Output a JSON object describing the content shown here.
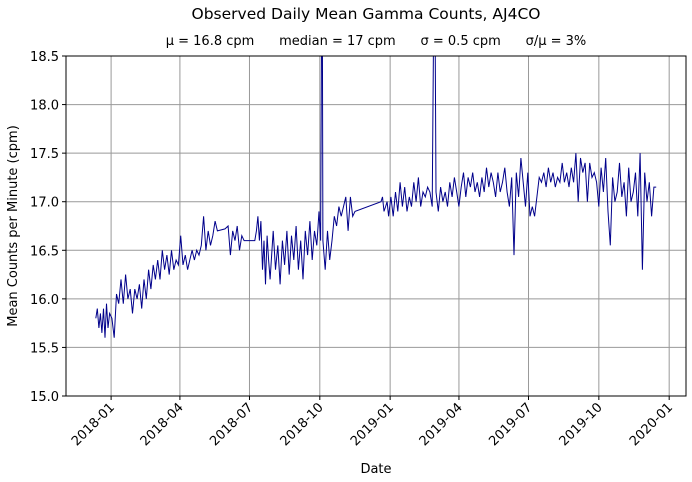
{
  "chart_data": {
    "type": "line",
    "title": "Observed Daily Mean Gamma Counts, AJ4CO",
    "subtitle": "μ = 16.8 cpm      median = 17 cpm      σ = 0.5 cpm      σ/μ = 3%",
    "xlabel": "Date",
    "ylabel": "Mean Counts per Minute (cpm)",
    "xlim": [
      "2017-11-03",
      "2020-01-23"
    ],
    "ylim": [
      15.0,
      18.5
    ],
    "grid": true,
    "line_color": "#00008b",
    "x_ticks": [
      "2018-01-01",
      "2018-04-01",
      "2018-07-01",
      "2018-10-01",
      "2019-01-01",
      "2019-04-01",
      "2019-07-01",
      "2019-10-01",
      "2020-01-01"
    ],
    "x_tick_labels": [
      "2018-01",
      "2018-04",
      "2018-07",
      "2018-10",
      "2019-01",
      "2019-04",
      "2019-07",
      "2019-10",
      "2020-01"
    ],
    "y_ticks": [
      15.0,
      15.5,
      16.0,
      16.5,
      17.0,
      17.5,
      18.0,
      18.5
    ],
    "y_tick_labels": [
      "15.0",
      "15.5",
      "16.0",
      "16.5",
      "17.0",
      "17.5",
      "18.0",
      "18.5"
    ],
    "points": [
      [
        "2017-12-12",
        15.8
      ],
      [
        "2017-12-14",
        15.9
      ],
      [
        "2017-12-16",
        15.7
      ],
      [
        "2017-12-18",
        15.85
      ],
      [
        "2017-12-20",
        15.65
      ],
      [
        "2017-12-22",
        15.9
      ],
      [
        "2017-12-24",
        15.6
      ],
      [
        "2017-12-26",
        15.95
      ],
      [
        "2017-12-28",
        15.7
      ],
      [
        "2017-12-30",
        15.85
      ],
      [
        "2018-01-02",
        15.8
      ],
      [
        "2018-01-05",
        15.6
      ],
      [
        "2018-01-08",
        16.05
      ],
      [
        "2018-01-11",
        15.95
      ],
      [
        "2018-01-14",
        16.2
      ],
      [
        "2018-01-17",
        15.95
      ],
      [
        "2018-01-20",
        16.25
      ],
      [
        "2018-01-23",
        16.0
      ],
      [
        "2018-01-26",
        16.1
      ],
      [
        "2018-01-29",
        15.85
      ],
      [
        "2018-02-01",
        16.1
      ],
      [
        "2018-02-04",
        16.0
      ],
      [
        "2018-02-07",
        16.15
      ],
      [
        "2018-02-10",
        15.9
      ],
      [
        "2018-02-13",
        16.2
      ],
      [
        "2018-02-16",
        16.0
      ],
      [
        "2018-02-19",
        16.3
      ],
      [
        "2018-02-22",
        16.1
      ],
      [
        "2018-02-25",
        16.35
      ],
      [
        "2018-02-28",
        16.2
      ],
      [
        "2018-03-03",
        16.4
      ],
      [
        "2018-03-06",
        16.2
      ],
      [
        "2018-03-09",
        16.5
      ],
      [
        "2018-03-12",
        16.3
      ],
      [
        "2018-03-15",
        16.45
      ],
      [
        "2018-03-18",
        16.25
      ],
      [
        "2018-03-21",
        16.5
      ],
      [
        "2018-03-24",
        16.3
      ],
      [
        "2018-03-27",
        16.4
      ],
      [
        "2018-03-30",
        16.35
      ],
      [
        "2018-04-02",
        16.65
      ],
      [
        "2018-04-05",
        16.35
      ],
      [
        "2018-04-08",
        16.45
      ],
      [
        "2018-04-11",
        16.3
      ],
      [
        "2018-04-14",
        16.4
      ],
      [
        "2018-04-17",
        16.5
      ],
      [
        "2018-04-20",
        16.4
      ],
      [
        "2018-04-23",
        16.5
      ],
      [
        "2018-04-26",
        16.45
      ],
      [
        "2018-04-29",
        16.55
      ],
      [
        "2018-05-02",
        16.85
      ],
      [
        "2018-05-05",
        16.5
      ],
      [
        "2018-05-08",
        16.7
      ],
      [
        "2018-05-11",
        16.55
      ],
      [
        "2018-05-14",
        16.65
      ],
      [
        "2018-05-17",
        16.8
      ],
      [
        "2018-05-20",
        16.7
      ],
      [
        "2018-05-30",
        16.72
      ],
      [
        "2018-06-03",
        16.75
      ],
      [
        "2018-06-06",
        16.45
      ],
      [
        "2018-06-09",
        16.7
      ],
      [
        "2018-06-12",
        16.6
      ],
      [
        "2018-06-15",
        16.75
      ],
      [
        "2018-06-18",
        16.5
      ],
      [
        "2018-06-21",
        16.65
      ],
      [
        "2018-06-24",
        16.6
      ],
      [
        "2018-07-08",
        16.6
      ],
      [
        "2018-07-10",
        16.7
      ],
      [
        "2018-07-12",
        16.85
      ],
      [
        "2018-07-14",
        16.6
      ],
      [
        "2018-07-16",
        16.8
      ],
      [
        "2018-07-18",
        16.3
      ],
      [
        "2018-07-20",
        16.6
      ],
      [
        "2018-07-22",
        16.15
      ],
      [
        "2018-07-24",
        16.65
      ],
      [
        "2018-07-26",
        16.4
      ],
      [
        "2018-07-28",
        16.2
      ],
      [
        "2018-08-01",
        16.7
      ],
      [
        "2018-08-04",
        16.3
      ],
      [
        "2018-08-07",
        16.55
      ],
      [
        "2018-08-10",
        16.15
      ],
      [
        "2018-08-13",
        16.6
      ],
      [
        "2018-08-16",
        16.35
      ],
      [
        "2018-08-19",
        16.7
      ],
      [
        "2018-08-22",
        16.25
      ],
      [
        "2018-08-25",
        16.65
      ],
      [
        "2018-08-28",
        16.4
      ],
      [
        "2018-08-31",
        16.75
      ],
      [
        "2018-09-03",
        16.3
      ],
      [
        "2018-09-06",
        16.6
      ],
      [
        "2018-09-09",
        16.2
      ],
      [
        "2018-09-12",
        16.7
      ],
      [
        "2018-09-15",
        16.45
      ],
      [
        "2018-09-18",
        16.8
      ],
      [
        "2018-09-21",
        16.4
      ],
      [
        "2018-09-24",
        16.7
      ],
      [
        "2018-09-27",
        16.55
      ],
      [
        "2018-09-30",
        16.9
      ],
      [
        "2018-10-02",
        16.6
      ],
      [
        "2018-10-04",
        20.0
      ],
      [
        "2018-10-05",
        16.6
      ],
      [
        "2018-10-08",
        16.3
      ],
      [
        "2018-10-11",
        16.7
      ],
      [
        "2018-10-14",
        16.4
      ],
      [
        "2018-10-17",
        16.6
      ],
      [
        "2018-10-20",
        16.85
      ],
      [
        "2018-10-23",
        16.75
      ],
      [
        "2018-10-26",
        16.95
      ],
      [
        "2018-10-29",
        16.85
      ],
      [
        "2018-11-01",
        16.95
      ],
      [
        "2018-11-04",
        17.05
      ],
      [
        "2018-11-07",
        16.7
      ],
      [
        "2018-11-10",
        17.05
      ],
      [
        "2018-11-13",
        16.85
      ],
      [
        "2018-11-16",
        16.9
      ],
      [
        "2018-12-20",
        17.0
      ],
      [
        "2018-12-22",
        17.05
      ],
      [
        "2018-12-24",
        16.9
      ],
      [
        "2018-12-26",
        16.95
      ],
      [
        "2018-12-28",
        17.0
      ],
      [
        "2018-12-30",
        16.85
      ],
      [
        "2019-01-02",
        17.05
      ],
      [
        "2019-01-05",
        16.85
      ],
      [
        "2019-01-08",
        17.1
      ],
      [
        "2019-01-11",
        16.9
      ],
      [
        "2019-01-14",
        17.2
      ],
      [
        "2019-01-17",
        16.95
      ],
      [
        "2019-01-20",
        17.15
      ],
      [
        "2019-01-23",
        16.9
      ],
      [
        "2019-01-26",
        17.05
      ],
      [
        "2019-01-29",
        16.95
      ],
      [
        "2019-02-01",
        17.2
      ],
      [
        "2019-02-04",
        17.0
      ],
      [
        "2019-02-07",
        17.25
      ],
      [
        "2019-02-10",
        16.95
      ],
      [
        "2019-02-13",
        17.1
      ],
      [
        "2019-02-16",
        17.05
      ],
      [
        "2019-02-19",
        17.15
      ],
      [
        "2019-02-22",
        17.1
      ],
      [
        "2019-02-25",
        16.95
      ],
      [
        "2019-02-28",
        20.0
      ],
      [
        "2019-03-02",
        17.1
      ],
      [
        "2019-03-05",
        16.9
      ],
      [
        "2019-03-08",
        17.15
      ],
      [
        "2019-03-11",
        17.0
      ],
      [
        "2019-03-14",
        17.1
      ],
      [
        "2019-03-17",
        16.95
      ],
      [
        "2019-03-20",
        17.2
      ],
      [
        "2019-03-23",
        17.05
      ],
      [
        "2019-03-26",
        17.25
      ],
      [
        "2019-03-29",
        17.1
      ],
      [
        "2019-04-01",
        16.95
      ],
      [
        "2019-04-04",
        17.15
      ],
      [
        "2019-04-07",
        17.3
      ],
      [
        "2019-04-10",
        17.05
      ],
      [
        "2019-04-13",
        17.25
      ],
      [
        "2019-04-16",
        17.15
      ],
      [
        "2019-04-19",
        17.3
      ],
      [
        "2019-04-22",
        17.1
      ],
      [
        "2019-04-25",
        17.2
      ],
      [
        "2019-04-28",
        17.05
      ],
      [
        "2019-05-01",
        17.25
      ],
      [
        "2019-05-04",
        17.1
      ],
      [
        "2019-05-07",
        17.35
      ],
      [
        "2019-05-10",
        17.15
      ],
      [
        "2019-05-13",
        17.3
      ],
      [
        "2019-05-16",
        17.2
      ],
      [
        "2019-05-19",
        17.05
      ],
      [
        "2019-05-22",
        17.3
      ],
      [
        "2019-05-25",
        17.1
      ],
      [
        "2019-05-28",
        17.2
      ],
      [
        "2019-05-31",
        17.35
      ],
      [
        "2019-06-03",
        17.1
      ],
      [
        "2019-06-06",
        16.95
      ],
      [
        "2019-06-09",
        17.25
      ],
      [
        "2019-06-12",
        16.45
      ],
      [
        "2019-06-15",
        17.3
      ],
      [
        "2019-06-18",
        17.05
      ],
      [
        "2019-06-21",
        17.45
      ],
      [
        "2019-06-24",
        17.2
      ],
      [
        "2019-06-27",
        16.95
      ],
      [
        "2019-06-30",
        17.3
      ],
      [
        "2019-07-03",
        16.85
      ],
      [
        "2019-07-06",
        16.95
      ],
      [
        "2019-07-09",
        16.85
      ],
      [
        "2019-07-12",
        17.05
      ],
      [
        "2019-07-15",
        17.25
      ],
      [
        "2019-07-18",
        17.2
      ],
      [
        "2019-07-21",
        17.3
      ],
      [
        "2019-07-24",
        17.15
      ],
      [
        "2019-07-27",
        17.35
      ],
      [
        "2019-07-30",
        17.2
      ],
      [
        "2019-08-02",
        17.3
      ],
      [
        "2019-08-05",
        17.15
      ],
      [
        "2019-08-08",
        17.25
      ],
      [
        "2019-08-11",
        17.2
      ],
      [
        "2019-08-14",
        17.4
      ],
      [
        "2019-08-17",
        17.2
      ],
      [
        "2019-08-20",
        17.3
      ],
      [
        "2019-08-23",
        17.15
      ],
      [
        "2019-08-26",
        17.35
      ],
      [
        "2019-08-29",
        17.2
      ],
      [
        "2019-09-01",
        17.5
      ],
      [
        "2019-09-04",
        17.0
      ],
      [
        "2019-09-07",
        17.45
      ],
      [
        "2019-09-10",
        17.3
      ],
      [
        "2019-09-13",
        17.4
      ],
      [
        "2019-09-16",
        17.0
      ],
      [
        "2019-09-19",
        17.4
      ],
      [
        "2019-09-22",
        17.25
      ],
      [
        "2019-09-25",
        17.3
      ],
      [
        "2019-09-28",
        17.2
      ],
      [
        "2019-10-01",
        16.95
      ],
      [
        "2019-10-04",
        17.35
      ],
      [
        "2019-10-07",
        17.1
      ],
      [
        "2019-10-10",
        17.45
      ],
      [
        "2019-10-13",
        16.9
      ],
      [
        "2019-10-16",
        16.55
      ],
      [
        "2019-10-19",
        17.25
      ],
      [
        "2019-10-22",
        17.0
      ],
      [
        "2019-10-25",
        17.1
      ],
      [
        "2019-10-28",
        17.4
      ],
      [
        "2019-10-31",
        17.05
      ],
      [
        "2019-11-03",
        17.2
      ],
      [
        "2019-11-06",
        16.85
      ],
      [
        "2019-11-09",
        17.35
      ],
      [
        "2019-11-12",
        17.0
      ],
      [
        "2019-11-15",
        17.1
      ],
      [
        "2019-11-18",
        17.3
      ],
      [
        "2019-11-21",
        16.85
      ],
      [
        "2019-11-24",
        17.5
      ],
      [
        "2019-11-27",
        16.3
      ],
      [
        "2019-11-30",
        17.3
      ],
      [
        "2019-12-03",
        17.0
      ],
      [
        "2019-12-06",
        17.2
      ],
      [
        "2019-12-09",
        16.85
      ],
      [
        "2019-12-12",
        17.15
      ],
      [
        "2019-12-15",
        17.15
      ]
    ]
  }
}
